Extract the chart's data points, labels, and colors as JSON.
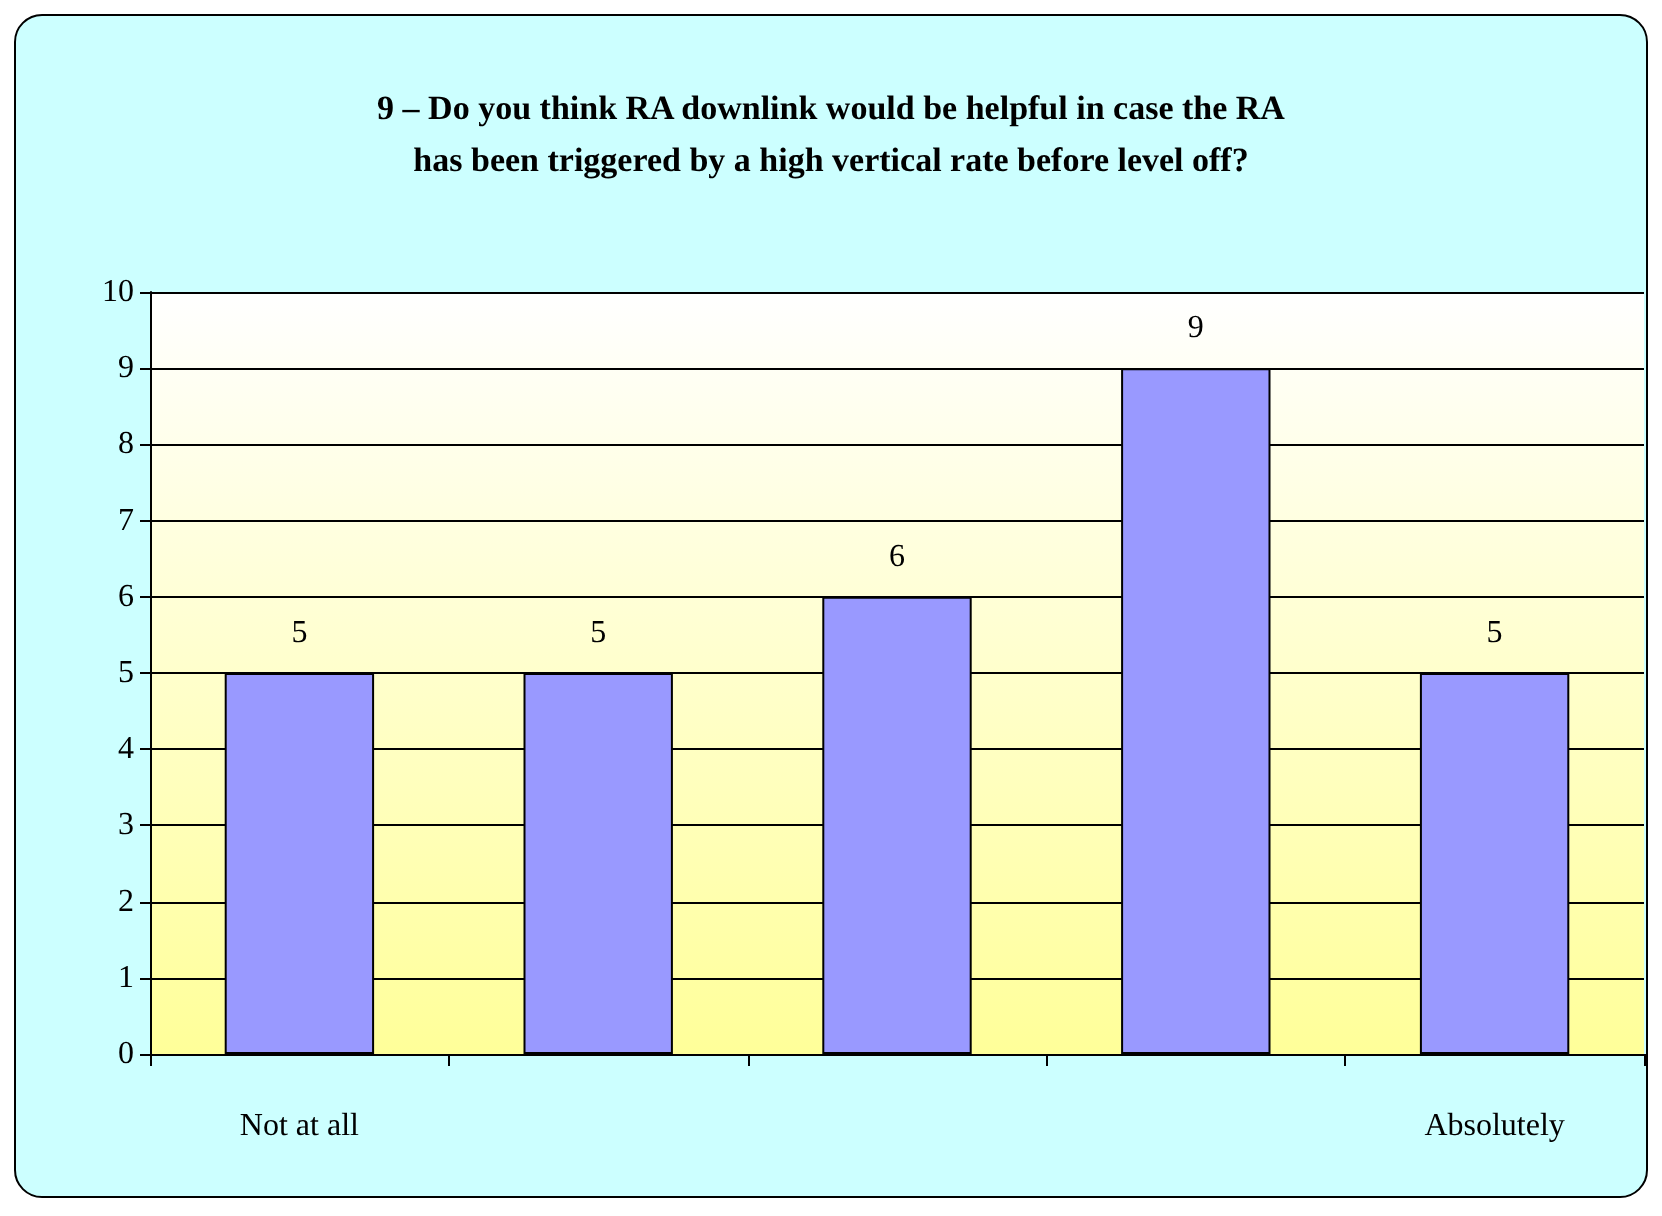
{
  "chart_data": {
    "type": "bar",
    "title": "9 – Do you think RA downlink would be helpful in case the RA\nhas been triggered by a high vertical rate before level off?",
    "categories": [
      "Not at all",
      null,
      null,
      null,
      "Absolutely"
    ],
    "values": [
      5,
      5,
      6,
      9,
      5
    ],
    "color": "#9999ff",
    "ylim": [
      0,
      10
    ],
    "yticks": [
      0,
      1,
      2,
      3,
      4,
      5,
      6,
      7,
      8,
      9,
      10
    ],
    "grid": "y",
    "data_labels": true
  }
}
